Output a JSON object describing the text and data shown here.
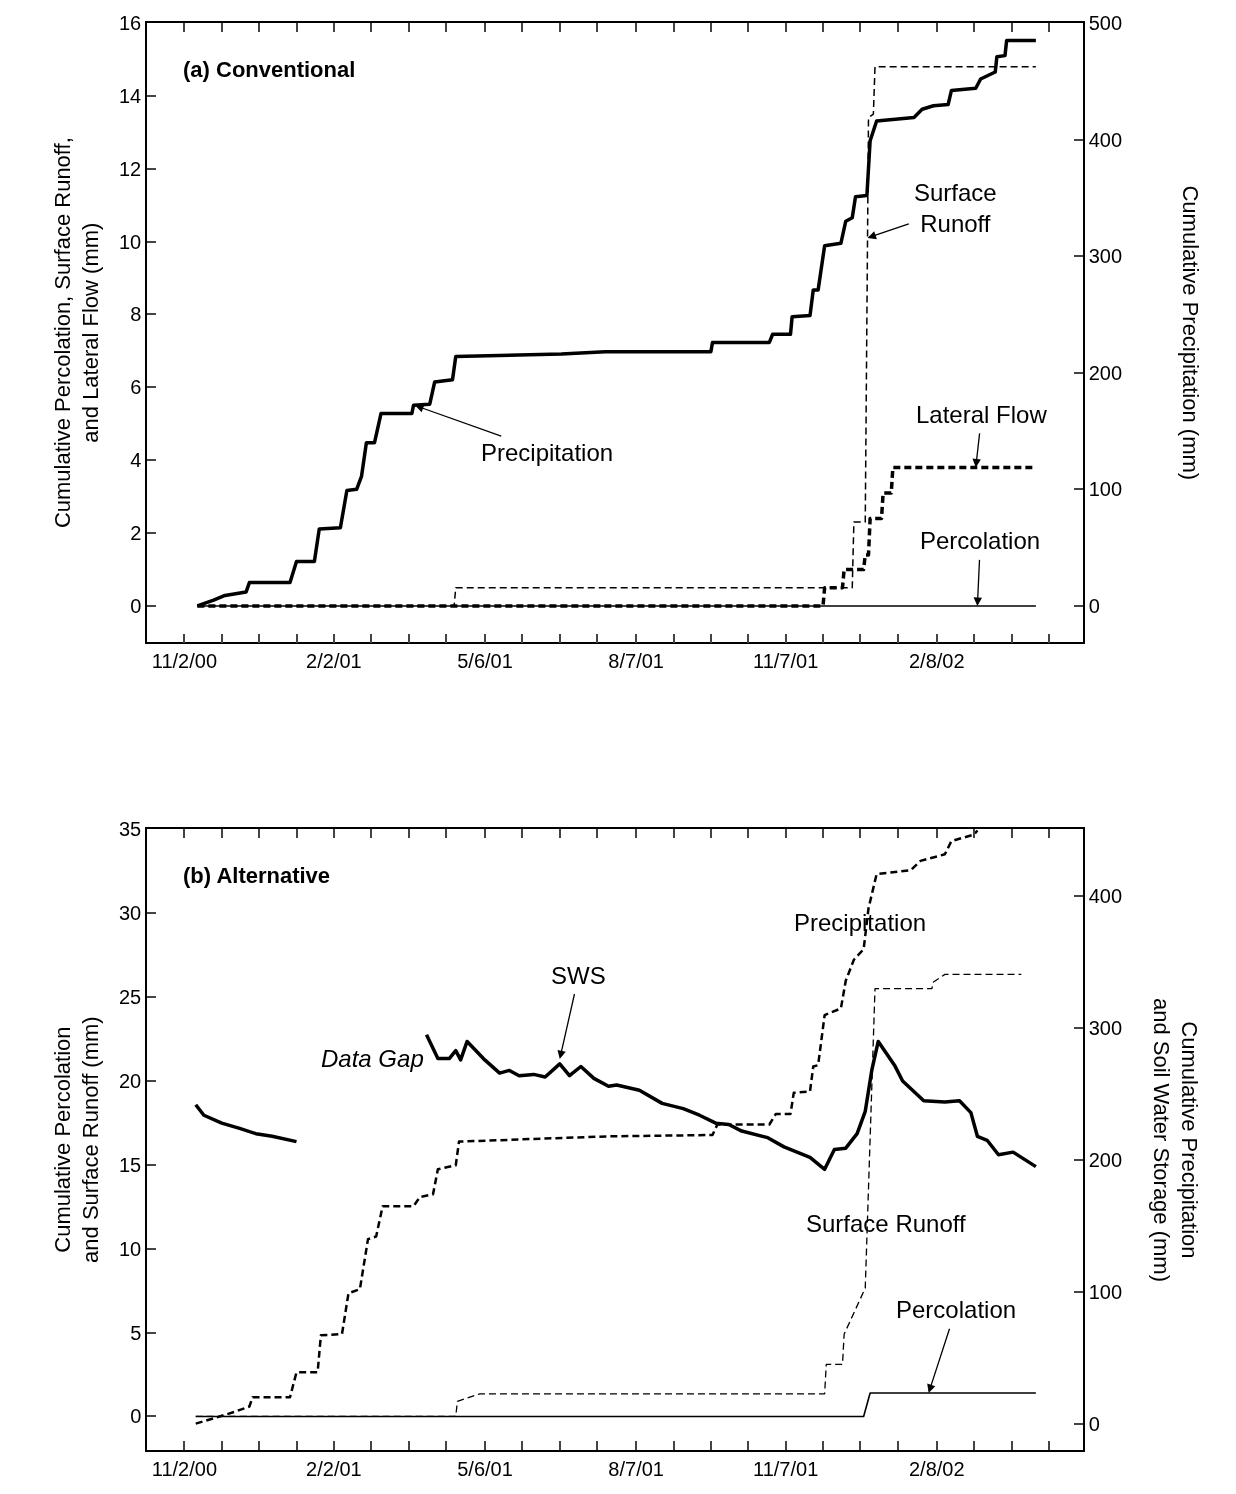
{
  "chart_data": [
    {
      "type": "line",
      "title": "(a) Conventional",
      "ylabel": "Cumulative Percolation, Surface Runoff,\nand Lateral Flow (mm)",
      "y2label": "Cumulative Precipitation (mm)",
      "xlim": [
        "2000-10-10",
        "2002-05-09"
      ],
      "xticks": [
        {
          "value": "2000-11-02",
          "label": "11/2/00"
        },
        {
          "value": "2000-11-25",
          "label": null
        },
        {
          "value": "2000-12-18",
          "label": null
        },
        {
          "value": "2001-01-10",
          "label": null
        },
        {
          "value": "2001-02-02",
          "label": "2/2/01"
        },
        {
          "value": "2001-02-25",
          "label": null
        },
        {
          "value": "2001-03-20",
          "label": null
        },
        {
          "value": "2001-04-12",
          "label": null
        },
        {
          "value": "2001-05-06",
          "label": "5/6/01"
        },
        {
          "value": "2001-05-29",
          "label": null
        },
        {
          "value": "2001-06-21",
          "label": null
        },
        {
          "value": "2001-07-14",
          "label": null
        },
        {
          "value": "2001-08-07",
          "label": "8/7/01"
        },
        {
          "value": "2001-08-30",
          "label": null
        },
        {
          "value": "2001-09-22",
          "label": null
        },
        {
          "value": "2001-10-15",
          "label": null
        },
        {
          "value": "2001-11-07",
          "label": "11/7/01"
        },
        {
          "value": "2001-11-30",
          "label": null
        },
        {
          "value": "2001-12-23",
          "label": null
        },
        {
          "value": "2002-01-15",
          "label": null
        },
        {
          "value": "2002-02-08",
          "label": "2/8/02"
        },
        {
          "value": "2002-03-03",
          "label": null
        },
        {
          "value": "2002-03-26",
          "label": null
        },
        {
          "value": "2002-04-18",
          "label": null
        }
      ],
      "ylim": [
        -1,
        16
      ],
      "yticks": [
        0,
        2,
        4,
        6,
        8,
        10,
        12,
        14,
        16
      ],
      "y2lim": [
        -31.25,
        500
      ],
      "y2ticks": [
        0,
        100,
        200,
        300,
        400,
        500
      ],
      "series": [
        {
          "axis": "y2",
          "color": "#000000",
          "line_style": "solid",
          "x": [
            "2000-11-10",
            "2000-11-20",
            "2000-11-27",
            "2000-12-10",
            "2000-12-12",
            "2001-01-06",
            "2001-01-10",
            "2001-01-21",
            "2001-01-24",
            "2001-02-06",
            "2001-02-10",
            "2001-02-16",
            "2001-02-19",
            "2001-02-22",
            "2001-02-27",
            "2001-03-03",
            "2001-03-22",
            "2001-03-23",
            "2001-04-02",
            "2001-04-05",
            "2001-04-16",
            "2001-04-18",
            "2001-06-22",
            "2001-07-19",
            "2001-09-22",
            "2001-09-23",
            "2001-10-28",
            "2001-10-30",
            "2001-11-10",
            "2001-11-11",
            "2001-11-22",
            "2001-11-24",
            "2001-11-27",
            "2001-12-01",
            "2001-12-11",
            "2001-12-14",
            "2001-12-18",
            "2001-12-20",
            "2001-12-27",
            "2001-12-29",
            "2002-01-02",
            "2002-01-25",
            "2002-01-30",
            "2002-02-06",
            "2002-02-15",
            "2002-02-17",
            "2002-03-04",
            "2002-03-07",
            "2002-03-16",
            "2002-03-17",
            "2002-03-22",
            "2002-03-23",
            "2002-04-10"
          ],
          "values": [
            0,
            5,
            9,
            12,
            20,
            20,
            38,
            38,
            66,
            67,
            99,
            100,
            111,
            140,
            140,
            165,
            165,
            172,
            173,
            192,
            194,
            214,
            216,
            218,
            218,
            226,
            226,
            233,
            233,
            248,
            249,
            271,
            271,
            309,
            311,
            330,
            333,
            351,
            352,
            399,
            416,
            419,
            426,
            429,
            430,
            442,
            444,
            452,
            458,
            471,
            472,
            485,
            485
          ]
        },
        {
          "color": "#000000",
          "line_style": "dashed",
          "x": [
            "2000-11-10",
            "2001-04-17",
            "2001-04-18",
            "2001-12-18",
            "2001-12-19",
            "2001-12-26",
            "2001-12-28",
            "2001-12-31",
            "2002-01-01",
            "2002-04-10"
          ],
          "values": [
            0,
            0,
            0.5,
            0.5,
            2.3,
            2.3,
            13.4,
            13.5,
            14.8,
            14.8
          ]
        },
        {
          "color": "#000000",
          "line_style": "dashed",
          "x": [
            "2000-11-10",
            "2001-11-30",
            "2001-12-01",
            "2001-12-12",
            "2001-12-13",
            "2001-12-25",
            "2001-12-26",
            "2001-12-28",
            "2001-12-29",
            "2002-01-05",
            "2002-01-06",
            "2002-01-11",
            "2002-01-12",
            "2002-04-10"
          ],
          "values": [
            0,
            0,
            0.5,
            0.5,
            1.0,
            1.0,
            1.4,
            1.4,
            2.4,
            2.4,
            3.1,
            3.1,
            3.8,
            3.8
          ]
        },
        {
          "color": "#000000",
          "line_style": "solid",
          "x": [
            "2000-11-10",
            "2002-04-10"
          ],
          "values": [
            0,
            0
          ]
        }
      ],
      "annotations": [
        {
          "text": "Precipitation",
          "x": "2001-03-24",
          "y": 5.5
        },
        {
          "text": "Surface\nRunoff",
          "x": "2001-12-27T10:00",
          "y": 10.1
        },
        {
          "text": "Lateral Flow",
          "x": "2002-03-04",
          "y": 3.8
        },
        {
          "text": "Percolation",
          "x": "2002-03-05",
          "y": 0
        }
      ]
    },
    {
      "type": "line",
      "title": "(b) Alternative",
      "ylabel": "Cumulative Percolation\nand Surface Runoff (mm)",
      "y2label": "Cumulative Precipitation\nand Soil Water Storage (mm)",
      "xlim": [
        "2000-10-10",
        "2002-05-09"
      ],
      "xticks": [
        {
          "value": "2000-11-02",
          "label": "11/2/00"
        },
        {
          "value": "2000-11-25",
          "label": null
        },
        {
          "value": "2000-12-18",
          "label": null
        },
        {
          "value": "2001-01-10",
          "label": null
        },
        {
          "value": "2001-02-02",
          "label": "2/2/01"
        },
        {
          "value": "2001-02-25",
          "label": null
        },
        {
          "value": "2001-03-20",
          "label": null
        },
        {
          "value": "2001-04-12",
          "label": null
        },
        {
          "value": "2001-05-06",
          "label": "5/6/01"
        },
        {
          "value": "2001-05-29",
          "label": null
        },
        {
          "value": "2001-06-21",
          "label": null
        },
        {
          "value": "2001-07-14",
          "label": null
        },
        {
          "value": "2001-08-07",
          "label": "8/7/01"
        },
        {
          "value": "2001-08-30",
          "label": null
        },
        {
          "value": "2001-09-22",
          "label": null
        },
        {
          "value": "2001-10-15",
          "label": null
        },
        {
          "value": "2001-11-07",
          "label": "11/7/01"
        },
        {
          "value": "2001-11-30",
          "label": null
        },
        {
          "value": "2001-12-23",
          "label": null
        },
        {
          "value": "2002-01-15",
          "label": null
        },
        {
          "value": "2002-02-08",
          "label": "2/8/02"
        },
        {
          "value": "2002-03-03",
          "label": null
        },
        {
          "value": "2002-03-26",
          "label": null
        },
        {
          "value": "2002-04-18",
          "label": null
        }
      ],
      "ylim": [
        -2,
        35
      ],
      "yticks": [
        0,
        5,
        10,
        15,
        20,
        25,
        30,
        35
      ],
      "y2lim": [
        -20,
        451
      ],
      "y2ticks": [
        0,
        100,
        200,
        300,
        400
      ],
      "series": [
        {
          "axis": "y2",
          "color": "#000000",
          "line_style": "dashed",
          "x": [
            "2000-11-09",
            "2000-11-20",
            "2000-12-03",
            "2000-12-12",
            "2000-12-14",
            "2001-01-06",
            "2001-01-10",
            "2001-01-23",
            "2001-01-25",
            "2001-02-07",
            "2001-02-11",
            "2001-02-18",
            "2001-02-23",
            "2001-02-28",
            "2001-03-04",
            "2001-03-23",
            "2001-03-27",
            "2001-04-04",
            "2001-04-07",
            "2001-04-18",
            "2001-04-20",
            "2001-07-21",
            "2001-09-23",
            "2001-09-26",
            "2001-10-28",
            "2001-11-01",
            "2001-11-10",
            "2001-11-12",
            "2001-11-22",
            "2001-11-24",
            "2001-11-27",
            "2001-12-01",
            "2001-12-11",
            "2001-12-14",
            "2001-12-19",
            "2001-12-25",
            "2001-12-28",
            "2002-01-02",
            "2002-01-23",
            "2002-01-29",
            "2002-02-13",
            "2002-02-17",
            "2002-03-03",
            "2002-03-05"
          ],
          "values": [
            0,
            4,
            9,
            13,
            20,
            20,
            39,
            39,
            67,
            68,
            99,
            102,
            140,
            142,
            165,
            165,
            172,
            174,
            193,
            196,
            214,
            218,
            219,
            227,
            227,
            235,
            235,
            251,
            252,
            271,
            272,
            310,
            315,
            336,
            352,
            360,
            391,
            417,
            420,
            427,
            432,
            442,
            447,
            450
          ]
        },
        {
          "axis": "y2",
          "color": "#000000",
          "line_style": "solid",
          "x": [
            "2000-11-09",
            "2000-11-14",
            "2000-11-25",
            "2000-12-06",
            "2000-12-16",
            "2000-12-26",
            "2001-01-10",
            "2001-02-19",
            "2001-03-31",
            "2001-04-07",
            "2001-04-14",
            "2001-04-18",
            "2001-04-21",
            "2001-04-25",
            "2001-05-05",
            "2001-05-15",
            "2001-05-21",
            "2001-05-27",
            "2001-06-05",
            "2001-06-12",
            "2001-06-21",
            "2001-06-27",
            "2001-07-04",
            "2001-07-12",
            "2001-07-21",
            "2001-07-26",
            "2001-08-09",
            "2001-08-23",
            "2001-09-05",
            "2001-09-15",
            "2001-09-25",
            "2001-10-03",
            "2001-10-11",
            "2001-10-27",
            "2001-11-06",
            "2001-11-22",
            "2001-12-01",
            "2001-12-07",
            "2001-12-14",
            "2001-12-21",
            "2001-12-26",
            "2001-12-30",
            "2002-01-03",
            "2002-01-13",
            "2002-01-18",
            "2002-01-31",
            "2002-02-13",
            "2002-02-22",
            "2002-03-01",
            "2002-03-05",
            "2002-03-11",
            "2002-03-18",
            "2002-03-27",
            "2002-04-10"
          ],
          "values": [
            242,
            234,
            228,
            224,
            220,
            218,
            214,
            null,
            295,
            277,
            277,
            283,
            276,
            290,
            277,
            266,
            268,
            264,
            265,
            263,
            273,
            264,
            271,
            262,
            256,
            257,
            253,
            243,
            239,
            234,
            228,
            227,
            222,
            217,
            210,
            202,
            193,
            208,
            209,
            220,
            237,
            268,
            290,
            272,
            260,
            245,
            244,
            245,
            236,
            218,
            215,
            204,
            206,
            195
          ]
        },
        {
          "color": "#000000",
          "line_style": "dashed",
          "x": [
            "2000-11-09",
            "2001-04-18",
            "2001-04-19",
            "2001-05-03",
            "2001-12-01",
            "2001-12-02",
            "2001-12-12",
            "2001-12-13",
            "2001-12-26",
            "2002-01-01",
            "2002-02-05",
            "2002-02-06",
            "2002-02-13",
            "2002-04-01"
          ],
          "values": [
            0,
            0,
            0.9,
            1.35,
            1.35,
            3.1,
            3.1,
            4.9,
            7.65,
            25.5,
            25.5,
            25.9,
            26.35,
            26.35
          ]
        },
        {
          "color": "#000000",
          "line_style": "solid",
          "x": [
            "2000-11-09",
            "2001-12-25",
            "2001-12-29",
            "2002-04-10"
          ],
          "values": [
            0,
            0,
            1.4,
            1.4
          ]
        }
      ],
      "annotations": [
        {
          "text": "SWS",
          "x": "2001-06-21",
          "y": 21.3
        },
        "Data Gap",
        "Precipitation",
        "Surface Runoff",
        {
          "text": "Percolation",
          "x": "2002-02-03",
          "y": 1.4
        }
      ]
    }
  ]
}
